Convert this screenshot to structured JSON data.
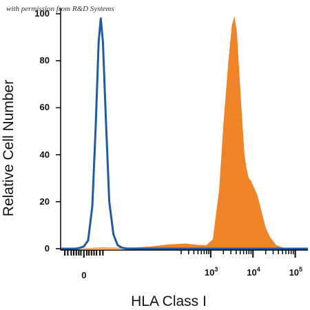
{
  "watermark": "with permission from R&D Systems",
  "colors": {
    "control": "#1f5aa6",
    "stained": "#f18426",
    "axis": "#000000"
  },
  "chart_data": {
    "type": "area",
    "xlabel": "HLA Class I",
    "ylabel": "Relative Cell Number",
    "x_scale": "biexponential",
    "ylim": [
      0,
      100
    ],
    "y_ticks": [
      {
        "value": 0,
        "label": "0"
      },
      {
        "value": 20,
        "label": "20"
      },
      {
        "value": 40,
        "label": "40"
      },
      {
        "value": 60,
        "label": "60"
      },
      {
        "value": 80,
        "label": "80"
      },
      {
        "value": 100,
        "label": "100"
      }
    ],
    "x_ticks": [
      {
        "value": 0,
        "base": "0",
        "exp": ""
      },
      {
        "value": 3,
        "base": "10",
        "exp": "3"
      },
      {
        "value": 4,
        "base": "10",
        "exp": "4"
      },
      {
        "value": 5,
        "base": "10",
        "exp": "5"
      }
    ],
    "series": [
      {
        "fill": "#f18426",
        "kind": "area",
        "x": [
          -0.3,
          0.4,
          0.8,
          1.2,
          1.6,
          2.0,
          2.4,
          2.7,
          2.9,
          3.05,
          3.2,
          3.3,
          3.42,
          3.5,
          3.56,
          3.62,
          3.68,
          3.72,
          3.8,
          3.85,
          3.9,
          3.95,
          4.0,
          4.1,
          4.2,
          4.3,
          4.4,
          4.55,
          4.7,
          4.9,
          5.2
        ],
        "y": [
          0,
          0.5,
          0.4,
          0.5,
          1.0,
          1.8,
          2.2,
          1.6,
          1.5,
          4,
          25,
          53,
          80,
          95,
          99,
          92,
          74,
          62,
          40,
          34,
          30,
          29,
          27,
          23,
          16,
          9,
          5,
          1.5,
          0.5,
          0,
          0
        ]
      },
      {
        "stroke": "#1f5aa6",
        "kind": "line",
        "x": [
          -0.7,
          -0.2,
          -0.1,
          0.0,
          0.1,
          0.2,
          0.28,
          0.35,
          0.4,
          0.45,
          0.52,
          0.6,
          0.7,
          0.8,
          0.9,
          1.0,
          1.2,
          2.0,
          3.0,
          4.0,
          5.4
        ],
        "y": [
          0,
          0,
          0.3,
          1.0,
          3.5,
          18,
          52,
          88,
          98,
          88,
          55,
          20,
          6,
          1.5,
          0.4,
          0.1,
          0,
          0,
          0,
          0,
          0
        ]
      }
    ]
  }
}
